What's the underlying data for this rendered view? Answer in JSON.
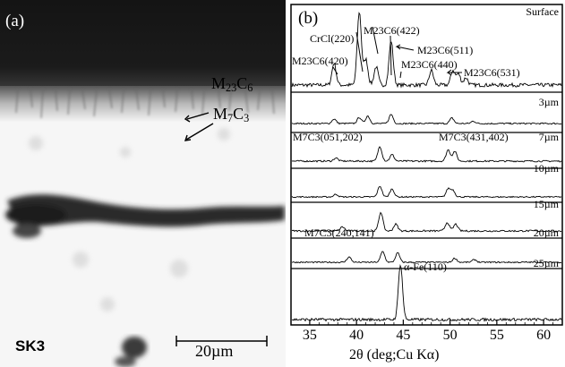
{
  "panel_a": {
    "letter": "(a)",
    "layer_label_m23": {
      "base": "M",
      "sub1": "23",
      "mid": "C",
      "sub2": "6"
    },
    "layer_label_m7": {
      "base": "M",
      "sub1": "7",
      "mid": "C",
      "sub2": "3"
    },
    "sample_label": "SK3",
    "scale_bar_label": "20µm"
  },
  "panel_b": {
    "letter": "(b)",
    "x_axis_title": "2θ   (deg;Cu Kα)",
    "x_ticks": [
      "35",
      "40",
      "45",
      "50",
      "55",
      "60"
    ],
    "peak_labels": {
      "crcl": "CrCl(220)",
      "m23_420": "M23C6(420)",
      "m23_422": "M23C6(422)",
      "m23_511": "M23C6(511)",
      "m23_440": "M23C6(440)",
      "m23_531": "M23C6(531)",
      "m7_051": "M7C3(051,202)",
      "m7_431": "M7C3(431,402)",
      "m7_240": "M7C3(240,141)",
      "alpha_fe": "α-Fe(110)"
    }
  },
  "chart_data": {
    "type": "line",
    "xlabel": "2θ   (deg;Cu Kα)",
    "xlim": [
      33,
      62
    ],
    "series": [
      {
        "name": "Surface",
        "peaks": [
          [
            37.6,
            0.3
          ],
          [
            40.3,
            1.0
          ],
          [
            41.0,
            0.35
          ],
          [
            42.1,
            0.25
          ],
          [
            43.7,
            0.6
          ],
          [
            48.0,
            0.2
          ],
          [
            50.3,
            0.2
          ],
          [
            50.9,
            0.15
          ],
          [
            51.7,
            0.1
          ]
        ]
      },
      {
        "name": "3µm",
        "peaks": [
          [
            37.6,
            0.15
          ],
          [
            40.3,
            0.2
          ],
          [
            41.2,
            0.25
          ],
          [
            43.7,
            0.3
          ],
          [
            50.2,
            0.18
          ],
          [
            52.5,
            0.08
          ]
        ]
      },
      {
        "name": "7µm",
        "peaks": [
          [
            37.8,
            0.1
          ],
          [
            42.5,
            0.45
          ],
          [
            43.8,
            0.2
          ],
          [
            49.8,
            0.35
          ],
          [
            50.5,
            0.3
          ]
        ]
      },
      {
        "name": "10µm",
        "peaks": [
          [
            37.8,
            0.1
          ],
          [
            42.5,
            0.4
          ],
          [
            43.8,
            0.3
          ],
          [
            49.8,
            0.3
          ],
          [
            50.3,
            0.25
          ]
        ]
      },
      {
        "name": "15µm",
        "peaks": [
          [
            38.5,
            0.12
          ],
          [
            42.6,
            0.55
          ],
          [
            44.2,
            0.2
          ],
          [
            49.7,
            0.25
          ],
          [
            50.6,
            0.2
          ]
        ]
      },
      {
        "name": "20µm",
        "peaks": [
          [
            39.2,
            0.2
          ],
          [
            42.8,
            0.4
          ],
          [
            44.4,
            0.35
          ],
          [
            50.5,
            0.15
          ],
          [
            52.6,
            0.1
          ]
        ]
      },
      {
        "name": "25µm",
        "peaks": [
          [
            44.7,
            1.0
          ]
        ]
      }
    ]
  }
}
